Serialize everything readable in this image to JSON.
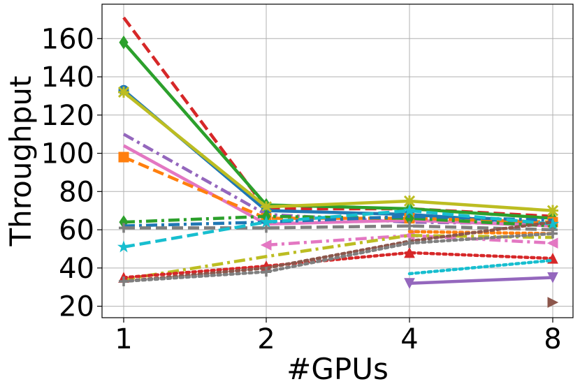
{
  "chart_data": {
    "type": "line",
    "xlabel": "#GPUs",
    "ylabel": "Throughput",
    "x": [
      "1",
      "2",
      "4",
      "8"
    ],
    "ylim": [
      14,
      178
    ],
    "yticks": [
      20,
      40,
      60,
      80,
      100,
      120,
      140,
      160
    ],
    "grid": true,
    "legend": "none",
    "series": [
      {
        "color": "#d62728",
        "dash": "dashed",
        "marker": "none",
        "values": [
          171,
          71,
          71,
          67
        ]
      },
      {
        "color": "#2ca02c",
        "dash": "solid",
        "marker": "diamond",
        "values": [
          158,
          73,
          71,
          66
        ]
      },
      {
        "color": "#1f77b4",
        "dash": "solid",
        "marker": "circle",
        "values": [
          133,
          70,
          68,
          63
        ]
      },
      {
        "color": "#bcbd22",
        "dash": "solid",
        "marker": "x",
        "values": [
          132,
          72,
          75,
          70
        ]
      },
      {
        "color": "#9467bd",
        "dash": "dashdot",
        "marker": "none",
        "values": [
          110,
          68,
          64,
          63
        ]
      },
      {
        "color": "#e377c2",
        "dash": "solid",
        "marker": "none",
        "values": [
          104,
          63,
          65,
          62
        ]
      },
      {
        "color": "#ff7f0e",
        "dash": "dashed",
        "marker": "square",
        "values": [
          98,
          66,
          66,
          64
        ]
      },
      {
        "color": "#2ca02c",
        "dash": "dashdot",
        "marker": "diamond",
        "values": [
          64,
          67,
          66,
          62
        ]
      },
      {
        "color": "#1f77b4",
        "dash": "dashdot",
        "marker": "none",
        "values": [
          62,
          64,
          67,
          65
        ]
      },
      {
        "color": "#7f7f7f",
        "dash": "dashed",
        "marker": "plus",
        "values": [
          61,
          61,
          62,
          60
        ]
      },
      {
        "color": "#17becf",
        "dash": "dashed",
        "marker": "star",
        "values": [
          51,
          64,
          70,
          63
        ]
      },
      {
        "color": "#e377c2",
        "dash": "dashdot",
        "marker": "tri-left",
        "values": [
          null,
          52,
          57,
          53
        ]
      },
      {
        "color": "#bcbd22",
        "dash": "dashdot",
        "marker": "none",
        "values": [
          34,
          46,
          57,
          56
        ]
      },
      {
        "color": "#ff7f0e",
        "dash": "dotted",
        "marker": "none",
        "values": [
          null,
          null,
          59,
          58
        ]
      },
      {
        "color": "#d62728",
        "dash": "dotted",
        "marker": "triangle",
        "values": [
          35,
          41,
          48,
          45
        ]
      },
      {
        "color": "#8c564b",
        "dash": "dotted",
        "marker": "none",
        "values": [
          33,
          40,
          54,
          64
        ]
      },
      {
        "color": "#7f7f7f",
        "dash": "dotted",
        "marker": "plus",
        "values": [
          33,
          38,
          53,
          58
        ]
      },
      {
        "color": "#17becf",
        "dash": "dotted",
        "marker": "none",
        "values": [
          null,
          null,
          37,
          44
        ]
      },
      {
        "color": "#9467bd",
        "dash": "solid",
        "marker": "tri-down",
        "values": [
          null,
          null,
          32,
          35
        ]
      },
      {
        "color": "#8c564b",
        "dash": "none",
        "marker": "tri-right",
        "values": [
          null,
          null,
          null,
          22
        ]
      }
    ]
  }
}
